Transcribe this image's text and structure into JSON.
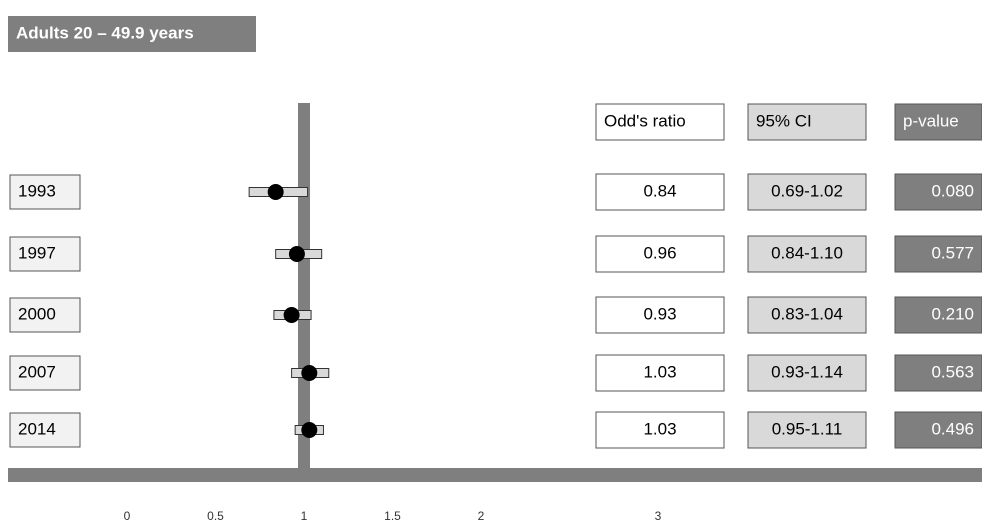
{
  "chart_data": {
    "type": "forest",
    "title": "Adults 20 – 49.9 years",
    "headers": [
      "Odd's ratio",
      "95% CI",
      "p-value"
    ],
    "categories": [
      "1993",
      "1997",
      "2000",
      "2007",
      "2014"
    ],
    "values": [
      0.84,
      0.96,
      0.93,
      1.03,
      1.03
    ],
    "ci_lower": [
      0.69,
      0.84,
      0.83,
      0.93,
      0.95
    ],
    "ci_upper": [
      1.02,
      1.1,
      1.04,
      1.14,
      1.11
    ],
    "ci_labels": [
      "0.69-1.02",
      "0.84-1.10",
      "0.83-1.04",
      "0.93-1.14",
      "0.95-1.11"
    ],
    "p_values": [
      "0.080",
      "0.577",
      "0.210",
      "0.563",
      "0.496"
    ],
    "reference_line": 1,
    "xlim": [
      0,
      3
    ],
    "xticks": [
      0,
      0.5,
      1,
      1.5,
      2,
      3
    ],
    "color": "#000000"
  }
}
